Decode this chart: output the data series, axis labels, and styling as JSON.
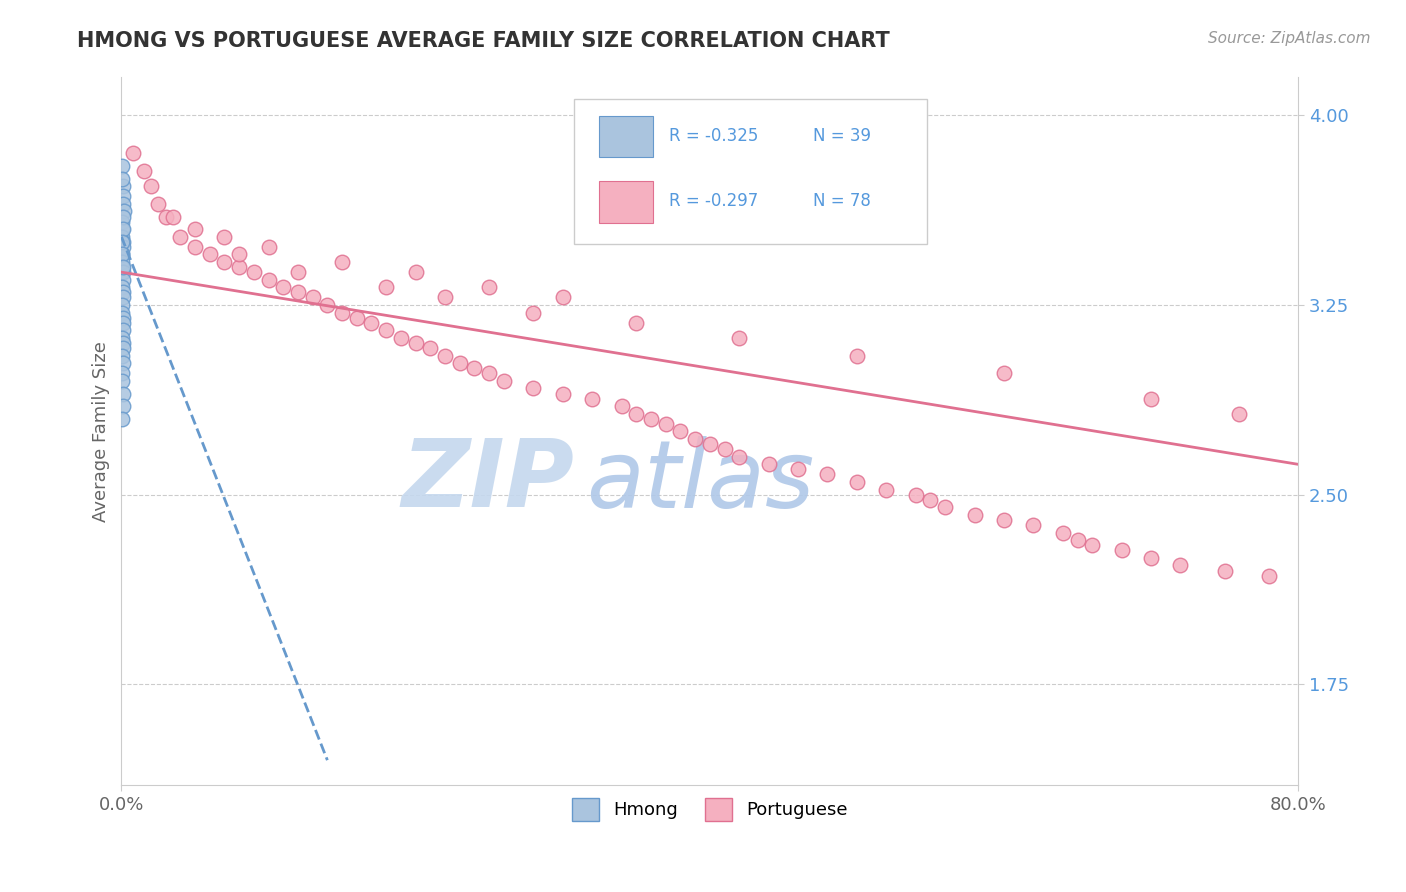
{
  "title": "HMONG VS PORTUGUESE AVERAGE FAMILY SIZE CORRELATION CHART",
  "source_text": "Source: ZipAtlas.com",
  "ylabel": "Average Family Size",
  "xlim": [
    0.0,
    80.0
  ],
  "ylim": [
    1.35,
    4.15
  ],
  "yticks_right": [
    1.75,
    2.5,
    3.25,
    4.0
  ],
  "hmong_scatter_x": [
    0.05,
    0.08,
    0.1,
    0.12,
    0.15,
    0.05,
    0.07,
    0.06,
    0.08,
    0.1,
    0.05,
    0.06,
    0.07,
    0.08,
    0.09,
    0.06,
    0.08,
    0.1,
    0.05,
    0.07,
    0.09,
    0.1,
    0.12,
    0.06,
    0.08,
    0.1,
    0.07,
    0.09,
    0.05,
    0.06,
    0.08,
    0.1,
    0.07,
    0.06,
    0.08,
    0.09,
    0.05,
    0.07,
    0.1
  ],
  "hmong_scatter_y": [
    3.8,
    3.72,
    3.68,
    3.65,
    3.62,
    3.58,
    3.55,
    3.52,
    3.5,
    3.48,
    3.45,
    3.42,
    3.4,
    3.38,
    3.35,
    3.32,
    3.3,
    3.28,
    3.25,
    3.22,
    3.2,
    3.18,
    3.15,
    3.12,
    3.1,
    3.08,
    3.05,
    3.02,
    2.98,
    2.95,
    2.9,
    2.85,
    2.8,
    3.75,
    3.6,
    3.55,
    3.5,
    3.45,
    3.4
  ],
  "portuguese_scatter_x": [
    0.8,
    1.5,
    2.0,
    2.5,
    3.0,
    4.0,
    5.0,
    6.0,
    7.0,
    8.0,
    9.0,
    10.0,
    11.0,
    12.0,
    13.0,
    14.0,
    15.0,
    16.0,
    17.0,
    18.0,
    19.0,
    20.0,
    21.0,
    22.0,
    23.0,
    24.0,
    25.0,
    26.0,
    28.0,
    30.0,
    32.0,
    34.0,
    35.0,
    36.0,
    37.0,
    38.0,
    39.0,
    40.0,
    41.0,
    42.0,
    44.0,
    46.0,
    48.0,
    50.0,
    52.0,
    54.0,
    55.0,
    56.0,
    58.0,
    60.0,
    62.0,
    64.0,
    65.0,
    66.0,
    68.0,
    70.0,
    72.0,
    75.0,
    78.0,
    5.0,
    10.0,
    15.0,
    20.0,
    25.0,
    30.0,
    8.0,
    12.0,
    18.0,
    22.0,
    28.0,
    35.0,
    42.0,
    50.0,
    60.0,
    70.0,
    76.0,
    3.5,
    7.0
  ],
  "portuguese_scatter_y": [
    3.85,
    3.78,
    3.72,
    3.65,
    3.6,
    3.52,
    3.48,
    3.45,
    3.42,
    3.4,
    3.38,
    3.35,
    3.32,
    3.3,
    3.28,
    3.25,
    3.22,
    3.2,
    3.18,
    3.15,
    3.12,
    3.1,
    3.08,
    3.05,
    3.02,
    3.0,
    2.98,
    2.95,
    2.92,
    2.9,
    2.88,
    2.85,
    2.82,
    2.8,
    2.78,
    2.75,
    2.72,
    2.7,
    2.68,
    2.65,
    2.62,
    2.6,
    2.58,
    2.55,
    2.52,
    2.5,
    2.48,
    2.45,
    2.42,
    2.4,
    2.38,
    2.35,
    2.32,
    2.3,
    2.28,
    2.25,
    2.22,
    2.2,
    2.18,
    3.55,
    3.48,
    3.42,
    3.38,
    3.32,
    3.28,
    3.45,
    3.38,
    3.32,
    3.28,
    3.22,
    3.18,
    3.12,
    3.05,
    2.98,
    2.88,
    2.82,
    3.6,
    3.52
  ],
  "hmong_line_x0": 0.0,
  "hmong_line_y0": 3.52,
  "hmong_line_x1": 14.0,
  "hmong_line_y1": 1.45,
  "portuguese_line_x0": 0.0,
  "portuguese_line_y0": 3.38,
  "portuguese_line_x1": 80.0,
  "portuguese_line_y1": 2.62,
  "hmong_color": "#6699cc",
  "hmong_fill": "#aac4de",
  "portuguese_color": "#e07090",
  "portuguese_fill": "#f5b0c0",
  "title_color": "#333333",
  "source_color": "#999999",
  "axis_label_color": "#666666",
  "right_axis_color": "#5599dd",
  "grid_color": "#cccccc",
  "background_color": "#ffffff",
  "watermark_zip": "ZIP",
  "watermark_atlas": "atlas",
  "watermark_zip_color": "#c5d8ee",
  "watermark_atlas_color": "#b0c8e8",
  "legend_entries": [
    {
      "label": "Hmong",
      "color": "#aac4de",
      "border": "#6699cc",
      "R": "-0.325",
      "N": "39"
    },
    {
      "label": "Portuguese",
      "color": "#f5b0c0",
      "border": "#e07090",
      "R": "-0.297",
      "N": "78"
    }
  ]
}
